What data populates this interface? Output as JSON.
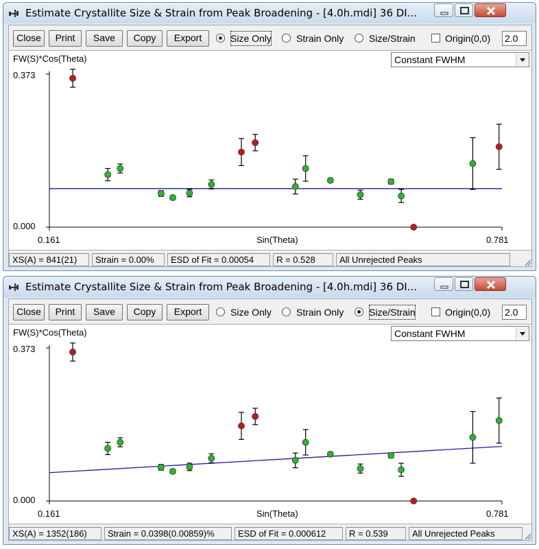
{
  "windows": [
    {
      "title": "Estimate Crystallite Size & Strain from Peak Broadening - [4.0h.mdi] 36 DI...",
      "toolbar": {
        "close": "Close",
        "print": "Print",
        "save": "Save",
        "copy": "Copy",
        "export": "Export",
        "radios": [
          "Size Only",
          "Strain Only",
          "Size/Strain"
        ],
        "selected_radio": 0,
        "origin_label": "Origin(0,0)",
        "origin_checked": false,
        "value": "2.0"
      },
      "plot": {
        "y_label": "FW(S)*Cos(Theta)",
        "x_label": "Sin(Theta)",
        "dropdown": "Constant FWHM",
        "y_max_label": "0.373",
        "y_min_label": "0.000",
        "x_min_label": "0.161",
        "x_max_label": "0.781"
      },
      "status": {
        "xs": "XS(A) = 841(21)",
        "strain": "Strain = 0.00%",
        "esd": "ESD of Fit = 0.00054",
        "r": "R = 0.528",
        "peaks": "All Unrejected Peaks"
      },
      "chart_data": {
        "type": "scatter",
        "xlabel": "Sin(Theta)",
        "ylabel": "FW(S)*Cos(Theta)",
        "xlim": [
          0.161,
          0.781
        ],
        "ylim": [
          0.0,
          0.373
        ],
        "colors": {
          "accepted": "#2db52d",
          "rejected": "#c0191c",
          "fit": "#1a1aa0"
        },
        "points": [
          {
            "x": 0.193,
            "y": 0.363,
            "err": 0.022,
            "status": "rejected"
          },
          {
            "x": 0.241,
            "y": 0.128,
            "err": 0.015,
            "status": "accepted"
          },
          {
            "x": 0.258,
            "y": 0.143,
            "err": 0.011,
            "status": "accepted"
          },
          {
            "x": 0.314,
            "y": 0.082,
            "err": 0.007,
            "status": "accepted"
          },
          {
            "x": 0.33,
            "y": 0.072,
            "err": 0.005,
            "status": "accepted"
          },
          {
            "x": 0.353,
            "y": 0.083,
            "err": 0.009,
            "status": "accepted"
          },
          {
            "x": 0.383,
            "y": 0.104,
            "err": 0.011,
            "status": "accepted"
          },
          {
            "x": 0.424,
            "y": 0.183,
            "err": 0.033,
            "status": "rejected"
          },
          {
            "x": 0.443,
            "y": 0.206,
            "err": 0.02,
            "status": "rejected"
          },
          {
            "x": 0.498,
            "y": 0.099,
            "err": 0.018,
            "status": "accepted"
          },
          {
            "x": 0.512,
            "y": 0.143,
            "err": 0.031,
            "status": "accepted"
          },
          {
            "x": 0.546,
            "y": 0.114,
            "err": 0.005,
            "status": "accepted"
          },
          {
            "x": 0.587,
            "y": 0.079,
            "err": 0.011,
            "status": "accepted"
          },
          {
            "x": 0.629,
            "y": 0.111,
            "err": 0.006,
            "status": "accepted"
          },
          {
            "x": 0.643,
            "y": 0.076,
            "err": 0.016,
            "status": "accepted"
          },
          {
            "x": 0.66,
            "y": 0.0,
            "err": 0.0,
            "status": "rejected"
          },
          {
            "x": 0.741,
            "y": 0.155,
            "err": 0.063,
            "status": "accepted"
          },
          {
            "x": 0.777,
            "y": 0.196,
            "err": 0.055,
            "status": "rejected"
          }
        ],
        "fit_line": {
          "y_at_xmin": 0.094,
          "y_at_xmax": 0.094
        }
      }
    },
    {
      "title": "Estimate Crystallite Size & Strain from Peak Broadening - [4.0h.mdi] 36 DI...",
      "toolbar": {
        "close": "Close",
        "print": "Print",
        "save": "Save",
        "copy": "Copy",
        "export": "Export",
        "radios": [
          "Size Only",
          "Strain Only",
          "Size/Strain"
        ],
        "selected_radio": 2,
        "origin_label": "Origin(0,0)",
        "origin_checked": false,
        "value": "2.0"
      },
      "plot": {
        "y_label": "FW(S)*Cos(Theta)",
        "x_label": "Sin(Theta)",
        "dropdown": "Constant FWHM",
        "y_max_label": "0.373",
        "y_min_label": "0.000",
        "x_min_label": "0.161",
        "x_max_label": "0.781"
      },
      "status": {
        "xs": "XS(A) = 1352(186)",
        "strain": "Strain = 0.0398(0.00859)%",
        "esd": "ESD of Fit = 0.000612",
        "r": "R = 0.539",
        "peaks": "All Unrejected Peaks"
      },
      "chart_data": {
        "type": "scatter",
        "xlabel": "Sin(Theta)",
        "ylabel": "FW(S)*Cos(Theta)",
        "xlim": [
          0.161,
          0.781
        ],
        "ylim": [
          0.0,
          0.373
        ],
        "colors": {
          "accepted": "#2db52d",
          "rejected": "#c0191c",
          "fit": "#1a1aa0"
        },
        "points": [
          {
            "x": 0.193,
            "y": 0.363,
            "err": 0.022,
            "status": "rejected"
          },
          {
            "x": 0.241,
            "y": 0.128,
            "err": 0.015,
            "status": "accepted"
          },
          {
            "x": 0.258,
            "y": 0.143,
            "err": 0.011,
            "status": "accepted"
          },
          {
            "x": 0.314,
            "y": 0.082,
            "err": 0.007,
            "status": "accepted"
          },
          {
            "x": 0.33,
            "y": 0.072,
            "err": 0.005,
            "status": "accepted"
          },
          {
            "x": 0.353,
            "y": 0.083,
            "err": 0.009,
            "status": "accepted"
          },
          {
            "x": 0.383,
            "y": 0.104,
            "err": 0.011,
            "status": "accepted"
          },
          {
            "x": 0.424,
            "y": 0.183,
            "err": 0.033,
            "status": "rejected"
          },
          {
            "x": 0.443,
            "y": 0.206,
            "err": 0.02,
            "status": "rejected"
          },
          {
            "x": 0.498,
            "y": 0.099,
            "err": 0.018,
            "status": "accepted"
          },
          {
            "x": 0.512,
            "y": 0.143,
            "err": 0.031,
            "status": "accepted"
          },
          {
            "x": 0.546,
            "y": 0.114,
            "err": 0.005,
            "status": "accepted"
          },
          {
            "x": 0.587,
            "y": 0.079,
            "err": 0.011,
            "status": "accepted"
          },
          {
            "x": 0.629,
            "y": 0.111,
            "err": 0.006,
            "status": "accepted"
          },
          {
            "x": 0.643,
            "y": 0.076,
            "err": 0.016,
            "status": "accepted"
          },
          {
            "x": 0.66,
            "y": 0.0,
            "err": 0.0,
            "status": "rejected"
          },
          {
            "x": 0.741,
            "y": 0.155,
            "err": 0.063,
            "status": "accepted"
          },
          {
            "x": 0.777,
            "y": 0.196,
            "err": 0.055,
            "status": "accepted"
          }
        ],
        "fit_line": {
          "y_at_xmin": 0.069,
          "y_at_xmax": 0.133
        }
      }
    }
  ]
}
